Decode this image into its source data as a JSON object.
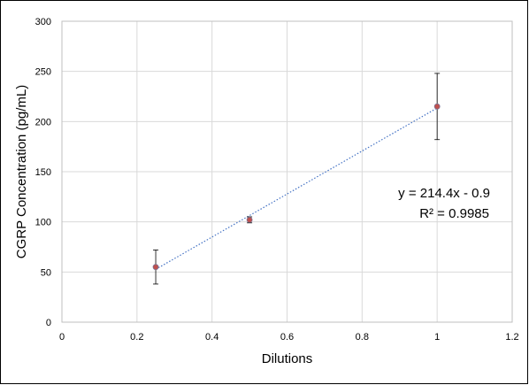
{
  "chart_data": {
    "type": "scatter",
    "xlabel": "Dilutions",
    "ylabel": "CGRP Concentration (pg/mL)",
    "xlim": [
      0,
      1.2
    ],
    "ylim": [
      0,
      300
    ],
    "x_ticks": [
      0,
      0.2,
      0.4,
      0.6,
      0.8,
      1,
      1.2
    ],
    "x_tick_labels": [
      "0",
      "0.2",
      "0.4",
      "0.6",
      "0.8",
      "1",
      "1.2"
    ],
    "y_ticks": [
      0,
      50,
      100,
      150,
      200,
      250,
      300
    ],
    "y_tick_labels": [
      "0",
      "50",
      "100",
      "150",
      "200",
      "250",
      "300"
    ],
    "grid": true,
    "legend": false,
    "series": [
      {
        "points": [
          {
            "x": 0.25,
            "y": 55,
            "err": 17
          },
          {
            "x": 0.5,
            "y": 102,
            "err": 3
          },
          {
            "x": 1,
            "y": 215,
            "err": 33
          }
        ],
        "marker_color": "#c0504d"
      }
    ],
    "trendline": {
      "slope": 214.4,
      "intercept": -0.9,
      "x_range": [
        0.25,
        1
      ],
      "color": "#4472c4",
      "style": "dotted",
      "equation": "y = 214.4x - 0.9",
      "r_squared": "R² = 0.9985"
    }
  }
}
